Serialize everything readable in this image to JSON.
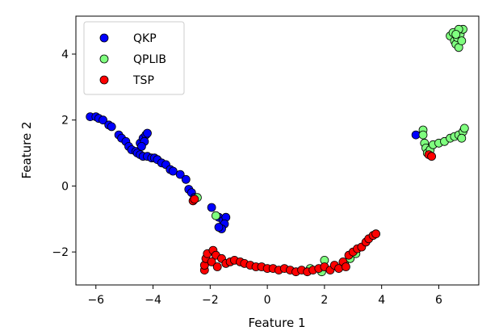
{
  "chart_data": {
    "type": "scatter",
    "title": "",
    "xlabel": "Feature 1",
    "ylabel": "Feature 2",
    "xlim": [
      -6.7,
      7.4
    ],
    "ylim": [
      -3.0,
      5.15
    ],
    "xticks": [
      -6,
      -4,
      -2,
      0,
      2,
      4,
      6
    ],
    "yticks": [
      -2,
      0,
      2,
      4
    ],
    "xtick_labels": [
      "−6",
      "−4",
      "−2",
      "0",
      "2",
      "4",
      "6"
    ],
    "ytick_labels": [
      "−2",
      "0",
      "2",
      "4"
    ],
    "grid": false,
    "legend_position": "top-left",
    "series": [
      {
        "name": "QKP",
        "color": "#0000ff",
        "points": [
          [
            -6.2,
            2.1
          ],
          [
            -6.0,
            2.1
          ],
          [
            -5.9,
            2.05
          ],
          [
            -5.75,
            2.0
          ],
          [
            -5.55,
            1.85
          ],
          [
            -5.45,
            1.8
          ],
          [
            -5.2,
            1.55
          ],
          [
            -5.1,
            1.45
          ],
          [
            -4.95,
            1.35
          ],
          [
            -4.85,
            1.2
          ],
          [
            -4.75,
            1.1
          ],
          [
            -4.6,
            1.05
          ],
          [
            -4.45,
            1.3
          ],
          [
            -4.35,
            1.45
          ],
          [
            -4.25,
            1.55
          ],
          [
            -4.2,
            1.6
          ],
          [
            -4.3,
            1.35
          ],
          [
            -4.4,
            1.2
          ],
          [
            -4.55,
            1.0
          ],
          [
            -4.45,
            0.95
          ],
          [
            -4.35,
            0.9
          ],
          [
            -4.2,
            0.9
          ],
          [
            -4.05,
            0.85
          ],
          [
            -3.95,
            0.85
          ],
          [
            -3.85,
            0.8
          ],
          [
            -3.7,
            0.7
          ],
          [
            -3.55,
            0.65
          ],
          [
            -3.4,
            0.5
          ],
          [
            -3.3,
            0.45
          ],
          [
            -3.05,
            0.35
          ],
          [
            -2.85,
            0.2
          ],
          [
            -2.75,
            -0.1
          ],
          [
            -2.65,
            -0.2
          ],
          [
            -2.55,
            -0.35
          ],
          [
            -1.95,
            -0.65
          ],
          [
            -1.7,
            -0.95
          ],
          [
            -1.55,
            -1.05
          ],
          [
            -1.45,
            -0.95
          ],
          [
            -1.5,
            -1.15
          ],
          [
            -1.6,
            -1.3
          ],
          [
            -1.7,
            -1.25
          ],
          [
            5.2,
            1.55
          ]
        ]
      },
      {
        "name": "QPLIB",
        "color": "#7fff7f",
        "points": [
          [
            -2.45,
            -0.35
          ],
          [
            -1.8,
            -0.9
          ],
          [
            1.5,
            -2.5
          ],
          [
            1.9,
            -2.6
          ],
          [
            2.0,
            -2.25
          ],
          [
            2.7,
            -2.35
          ],
          [
            2.9,
            -2.2
          ],
          [
            3.1,
            -2.05
          ],
          [
            5.45,
            1.7
          ],
          [
            5.45,
            1.55
          ],
          [
            5.5,
            1.3
          ],
          [
            5.55,
            1.15
          ],
          [
            5.6,
            1.0
          ],
          [
            5.7,
            1.1
          ],
          [
            5.8,
            1.25
          ],
          [
            6.0,
            1.3
          ],
          [
            6.2,
            1.35
          ],
          [
            6.4,
            1.45
          ],
          [
            6.55,
            1.5
          ],
          [
            6.7,
            1.55
          ],
          [
            6.85,
            1.65
          ],
          [
            6.9,
            1.75
          ],
          [
            6.8,
            1.45
          ],
          [
            6.4,
            4.55
          ],
          [
            6.5,
            4.65
          ],
          [
            6.55,
            4.4
          ],
          [
            6.6,
            4.3
          ],
          [
            6.65,
            4.5
          ],
          [
            6.7,
            4.2
          ],
          [
            6.75,
            4.6
          ],
          [
            6.8,
            4.4
          ],
          [
            6.85,
            4.75
          ],
          [
            6.7,
            4.75
          ],
          [
            6.6,
            4.6
          ]
        ]
      },
      {
        "name": "TSP",
        "color": "#ff0000",
        "points": [
          [
            -2.6,
            -0.45
          ],
          [
            -2.55,
            -0.4
          ],
          [
            -2.2,
            -2.55
          ],
          [
            -2.2,
            -2.4
          ],
          [
            -2.15,
            -2.2
          ],
          [
            -2.1,
            -2.05
          ],
          [
            -1.9,
            -1.95
          ],
          [
            -1.8,
            -2.1
          ],
          [
            -1.95,
            -2.3
          ],
          [
            -1.75,
            -2.45
          ],
          [
            -1.6,
            -2.2
          ],
          [
            -1.45,
            -2.35
          ],
          [
            -1.3,
            -2.3
          ],
          [
            -1.15,
            -2.25
          ],
          [
            -0.95,
            -2.3
          ],
          [
            -0.8,
            -2.35
          ],
          [
            -0.6,
            -2.4
          ],
          [
            -0.4,
            -2.45
          ],
          [
            -0.2,
            -2.45
          ],
          [
            0.0,
            -2.5
          ],
          [
            0.2,
            -2.5
          ],
          [
            0.4,
            -2.55
          ],
          [
            0.6,
            -2.5
          ],
          [
            0.8,
            -2.55
          ],
          [
            1.0,
            -2.6
          ],
          [
            1.2,
            -2.55
          ],
          [
            1.4,
            -2.6
          ],
          [
            1.6,
            -2.55
          ],
          [
            1.8,
            -2.5
          ],
          [
            2.0,
            -2.45
          ],
          [
            2.2,
            -2.55
          ],
          [
            2.35,
            -2.4
          ],
          [
            2.5,
            -2.5
          ],
          [
            2.65,
            -2.3
          ],
          [
            2.75,
            -2.45
          ],
          [
            2.85,
            -2.1
          ],
          [
            3.0,
            -2.0
          ],
          [
            3.15,
            -1.9
          ],
          [
            3.3,
            -1.85
          ],
          [
            3.45,
            -1.7
          ],
          [
            3.55,
            -1.6
          ],
          [
            3.7,
            -1.5
          ],
          [
            3.8,
            -1.45
          ],
          [
            5.65,
            0.95
          ],
          [
            5.75,
            0.9
          ]
        ]
      }
    ]
  }
}
